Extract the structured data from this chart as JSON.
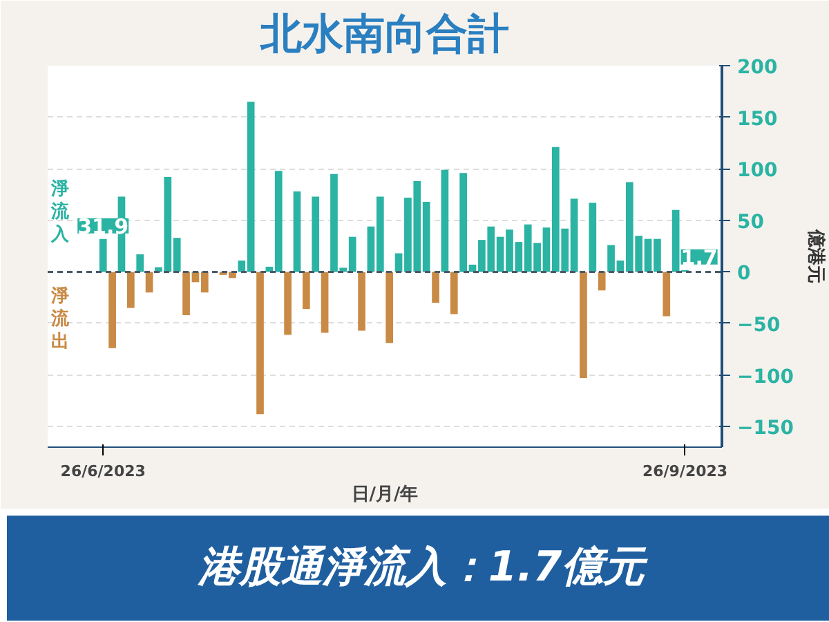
{
  "chart_data": {
    "type": "bar",
    "title": "北水南向合計",
    "xlabel": "日/月/年",
    "y2label": "億港元",
    "categories": [
      "26/6/2023",
      null,
      null,
      null,
      null,
      null,
      null,
      null,
      null,
      null,
      null,
      null,
      null,
      null,
      null,
      null,
      null,
      null,
      null,
      null,
      null,
      null,
      null,
      null,
      null,
      null,
      null,
      null,
      null,
      null,
      null,
      null,
      null,
      null,
      null,
      null,
      null,
      null,
      null,
      null,
      null,
      null,
      null,
      null,
      null,
      null,
      null,
      null,
      null,
      null,
      null,
      null,
      null,
      null,
      null,
      null,
      null,
      null,
      null,
      null,
      null,
      null,
      null,
      "26/9/2023"
    ],
    "series": [
      {
        "axis": "y2",
        "values": [
          31.9,
          -74,
          73,
          -35,
          17,
          -20,
          4.5,
          92,
          33,
          -42,
          -10,
          -20,
          null,
          -3,
          -6,
          11,
          165,
          -138,
          5,
          98,
          -61,
          78,
          -36,
          73,
          -59,
          95,
          4,
          34,
          -57,
          44,
          73,
          -69,
          18,
          72,
          88,
          68,
          -30,
          99,
          -41,
          96,
          7,
          31,
          44,
          34,
          41,
          29,
          46,
          28,
          43,
          121,
          42,
          71,
          -103,
          67,
          -18,
          26,
          11,
          87,
          35,
          32,
          32,
          -43,
          60,
          1.7
        ],
        "colors": [
          "#2bb3a3",
          "#c98a45",
          "#2bb3a3",
          "#c98a45",
          "#2bb3a3",
          "#c98a45",
          "#2bb3a3",
          "#2bb3a3",
          "#2bb3a3",
          "#c98a45",
          "#c98a45",
          "#c98a45",
          "#2bb3a3",
          "#c98a45",
          "#c98a45",
          "#2bb3a3",
          "#2bb3a3",
          "#c98a45",
          "#2bb3a3",
          "#2bb3a3",
          "#c98a45",
          "#2bb3a3",
          "#c98a45",
          "#2bb3a3",
          "#c98a45",
          "#2bb3a3",
          "#2bb3a3",
          "#2bb3a3",
          "#c98a45",
          "#2bb3a3",
          "#2bb3a3",
          "#c98a45",
          "#2bb3a3",
          "#2bb3a3",
          "#2bb3a3",
          "#2bb3a3",
          "#c98a45",
          "#2bb3a3",
          "#c98a45",
          "#2bb3a3",
          "#2bb3a3",
          "#2bb3a3",
          "#2bb3a3",
          "#2bb3a3",
          "#2bb3a3",
          "#2bb3a3",
          "#2bb3a3",
          "#2bb3a3",
          "#2bb3a3",
          "#2bb3a3",
          "#2bb3a3",
          "#2bb3a3",
          "#c98a45",
          "#2bb3a3",
          "#c98a45",
          "#2bb3a3",
          "#2bb3a3",
          "#2bb3a3",
          "#2bb3a3",
          "#2bb3a3",
          "#2bb3a3",
          "#c98a45",
          "#2bb3a3",
          "#2bb3a3"
        ],
        "value_labels": [
          "31.9",
          null,
          null,
          null,
          null,
          null,
          null,
          null,
          null,
          null,
          null,
          null,
          null,
          null,
          null,
          null,
          null,
          null,
          null,
          null,
          null,
          null,
          null,
          null,
          null,
          null,
          null,
          null,
          null,
          null,
          null,
          null,
          null,
          null,
          null,
          null,
          null,
          null,
          null,
          null,
          null,
          null,
          null,
          null,
          null,
          null,
          null,
          null,
          null,
          null,
          null,
          null,
          null,
          null,
          null,
          null,
          null,
          null,
          null,
          null,
          null,
          null,
          null,
          "1.7"
        ]
      }
    ],
    "y2lim": [
      -170,
      200
    ],
    "y2ticks": [
      -150,
      -100,
      -50,
      0,
      50,
      100,
      150,
      200
    ],
    "ref_lines": [
      {
        "axis": "y2",
        "value": 0,
        "color": "#4a5a6a",
        "line_style": "dashed"
      }
    ],
    "grid": "y",
    "legend": false,
    "annotations": [
      "淨流入",
      "淨流出",
      "港股通淨流入：1.7億元"
    ]
  }
}
